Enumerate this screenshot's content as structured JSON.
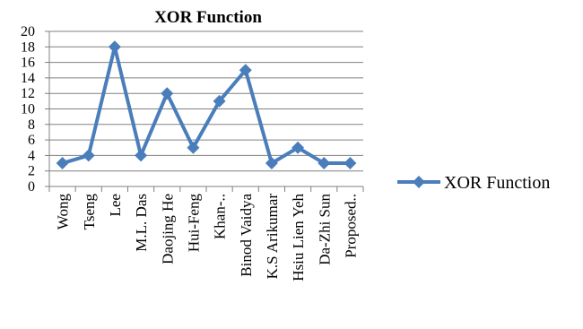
{
  "chart_data": {
    "type": "line",
    "title": "XOR Function",
    "xlabel": "",
    "ylabel": "",
    "categories": [
      "Wong",
      "Tseng",
      "Lee",
      "M.L. Das",
      "Daojing He",
      "Hui-Feng",
      "Khan-..",
      "Binod Vaidya",
      "K.S Arikumar",
      "Hsiu Lien Yeh",
      "Da-Zhi Sun",
      "Proposed.."
    ],
    "series": [
      {
        "name": "XOR Function",
        "values": [
          3,
          4,
          18,
          4,
          12,
          5,
          11,
          15,
          3,
          5,
          3,
          3
        ]
      }
    ],
    "ylim": [
      0,
      20
    ],
    "yticks": [
      "0",
      "2",
      "4",
      "6",
      "8",
      "10",
      "12",
      "14",
      "16",
      "18",
      "20"
    ],
    "grid": true,
    "legend": "right",
    "colors": {
      "series": "#4a7ebb",
      "grid": "#808080",
      "axis": "#808080"
    }
  }
}
